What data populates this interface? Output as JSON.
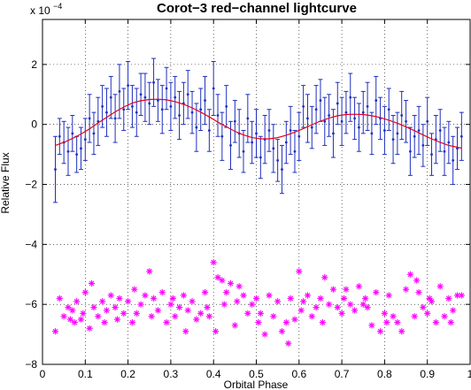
{
  "chart_data": {
    "type": "scatter",
    "title": "Corot−3  red−channel lightcurve",
    "xlabel": "Orbital Phase",
    "ylabel": "Relative Flux",
    "y_multiplier_label": "x 10",
    "y_multiplier_exponent": "−4",
    "xlim": [
      0,
      1
    ],
    "ylim": [
      -8,
      3.5
    ],
    "grid": true,
    "x_ticks": [
      0,
      0.1,
      0.2,
      0.3,
      0.4,
      0.5,
      0.6,
      0.7,
      0.8,
      0.9,
      1
    ],
    "x_tick_labels": [
      "0",
      "0.1",
      "0.2",
      "0.3",
      "0.4",
      "0.5",
      "0.6",
      "0.7",
      "0.8",
      "0.9",
      "1"
    ],
    "y_ticks": [
      -8,
      -6,
      -4,
      -2,
      0,
      2
    ],
    "y_tick_labels": [
      "−8",
      "−6",
      "−4",
      "−2",
      "0",
      "2"
    ],
    "colors": {
      "data": "#1f2fbf",
      "model": "#e8001c",
      "residuals": "#ff00ff"
    },
    "series": [
      {
        "kind": "errorbar",
        "x": [
          0.03,
          0.04,
          0.05,
          0.06,
          0.07,
          0.08,
          0.09,
          0.1,
          0.11,
          0.12,
          0.13,
          0.14,
          0.15,
          0.16,
          0.17,
          0.18,
          0.19,
          0.2,
          0.21,
          0.22,
          0.23,
          0.24,
          0.25,
          0.26,
          0.27,
          0.28,
          0.29,
          0.3,
          0.31,
          0.32,
          0.33,
          0.34,
          0.35,
          0.36,
          0.37,
          0.38,
          0.39,
          0.4,
          0.41,
          0.42,
          0.43,
          0.44,
          0.45,
          0.46,
          0.47,
          0.48,
          0.49,
          0.5,
          0.51,
          0.52,
          0.53,
          0.54,
          0.55,
          0.56,
          0.57,
          0.58,
          0.59,
          0.6,
          0.61,
          0.62,
          0.63,
          0.64,
          0.65,
          0.66,
          0.67,
          0.68,
          0.69,
          0.7,
          0.71,
          0.72,
          0.73,
          0.74,
          0.75,
          0.76,
          0.77,
          0.78,
          0.79,
          0.8,
          0.81,
          0.82,
          0.83,
          0.84,
          0.85,
          0.86,
          0.87,
          0.88,
          0.89,
          0.9,
          0.91,
          0.92,
          0.93,
          0.94,
          0.95,
          0.96,
          0.97,
          0.98
        ],
        "y": [
          -1.5,
          -0.4,
          -0.6,
          -0.9,
          -0.3,
          -1.0,
          -0.8,
          -0.5,
          0.2,
          -0.3,
          0.1,
          0.6,
          0.4,
          0.9,
          0.2,
          1.1,
          0.5,
          1.3,
          0.6,
          0.4,
          1.0,
          0.9,
          0.7,
          1.4,
          0.8,
          0.5,
          1.2,
          0.6,
          0.9,
          0.3,
          0.7,
          1.0,
          0.4,
          -0.1,
          0.5,
          0.8,
          -0.2,
          1.2,
          0.3,
          -0.4,
          0.6,
          -0.7,
          0.1,
          -0.3,
          -0.9,
          0.2,
          -0.6,
          -0.3,
          -1.1,
          -0.5,
          -0.2,
          -0.8,
          -1.2,
          -1.5,
          -0.6,
          -0.2,
          -0.9,
          -0.4,
          0.6,
          0.2,
          -0.1,
          0.5,
          0.8,
          0.1,
          0.3,
          -0.3,
          0.7,
          0.1,
          0.4,
          0.9,
          0.2,
          -0.1,
          0.4,
          0.6,
          -0.3,
          0.8,
          0.2,
          -0.2,
          0.5,
          -0.5,
          -0.3,
          0.3,
          0.1,
          -0.9,
          -0.4,
          -0.2,
          -0.7,
          0.1,
          -1.0,
          -0.5,
          -0.2,
          -0.9,
          -0.6,
          -1.2,
          -0.8,
          -0.4
        ],
        "err": [
          1.1,
          0.6,
          0.7,
          0.8,
          0.6,
          0.6,
          0.7,
          0.7,
          0.8,
          0.7,
          0.8,
          0.7,
          0.8,
          0.7,
          0.8,
          0.9,
          0.7,
          0.8,
          0.7,
          0.8,
          0.7,
          0.8,
          0.7,
          0.8,
          0.7,
          0.8,
          0.7,
          0.8,
          0.7,
          0.8,
          0.7,
          0.8,
          0.7,
          0.8,
          0.7,
          0.8,
          0.7,
          0.9,
          0.7,
          0.8,
          0.7,
          0.8,
          0.7,
          0.8,
          0.7,
          0.8,
          0.7,
          0.8,
          0.7,
          0.8,
          0.7,
          0.8,
          0.7,
          0.8,
          0.7,
          0.8,
          0.7,
          0.8,
          0.7,
          0.8,
          0.7,
          0.8,
          0.7,
          0.8,
          0.7,
          0.8,
          0.7,
          0.8,
          0.7,
          0.8,
          0.7,
          0.8,
          0.7,
          0.8,
          0.7,
          0.8,
          0.7,
          0.8,
          0.7,
          0.8,
          0.7,
          0.8,
          0.7,
          0.8,
          0.7,
          0.8,
          0.7,
          0.8,
          0.7,
          0.8,
          0.7,
          0.8,
          0.7,
          0.8,
          0.7,
          0.8
        ]
      },
      {
        "kind": "line",
        "x": [
          0.03,
          0.05,
          0.07,
          0.09,
          0.11,
          0.13,
          0.15,
          0.17,
          0.19,
          0.21,
          0.23,
          0.25,
          0.27,
          0.29,
          0.31,
          0.33,
          0.35,
          0.37,
          0.39,
          0.41,
          0.43,
          0.45,
          0.47,
          0.49,
          0.51,
          0.53,
          0.55,
          0.57,
          0.59,
          0.61,
          0.63,
          0.65,
          0.67,
          0.69,
          0.71,
          0.73,
          0.75,
          0.77,
          0.79,
          0.81,
          0.83,
          0.85,
          0.87,
          0.89,
          0.91,
          0.93,
          0.95,
          0.97,
          0.98
        ],
        "y": [
          -0.7,
          -0.6,
          -0.47,
          -0.32,
          -0.15,
          0.05,
          0.24,
          0.42,
          0.58,
          0.71,
          0.79,
          0.83,
          0.84,
          0.82,
          0.76,
          0.67,
          0.55,
          0.41,
          0.25,
          0.08,
          -0.08,
          -0.23,
          -0.35,
          -0.44,
          -0.48,
          -0.48,
          -0.44,
          -0.36,
          -0.26,
          -0.14,
          -0.01,
          0.11,
          0.21,
          0.29,
          0.33,
          0.34,
          0.33,
          0.29,
          0.23,
          0.14,
          0.04,
          -0.08,
          -0.21,
          -0.35,
          -0.48,
          -0.6,
          -0.7,
          -0.76,
          -0.79
        ]
      },
      {
        "kind": "scatter",
        "marker": "*",
        "x": [
          0.03,
          0.04,
          0.05,
          0.06,
          0.065,
          0.07,
          0.075,
          0.08,
          0.09,
          0.095,
          0.1,
          0.11,
          0.115,
          0.12,
          0.13,
          0.14,
          0.145,
          0.15,
          0.16,
          0.17,
          0.175,
          0.18,
          0.19,
          0.2,
          0.21,
          0.215,
          0.22,
          0.23,
          0.24,
          0.25,
          0.255,
          0.26,
          0.27,
          0.28,
          0.29,
          0.3,
          0.305,
          0.31,
          0.32,
          0.33,
          0.335,
          0.34,
          0.35,
          0.36,
          0.37,
          0.38,
          0.385,
          0.39,
          0.4,
          0.405,
          0.41,
          0.42,
          0.425,
          0.43,
          0.44,
          0.45,
          0.455,
          0.46,
          0.47,
          0.48,
          0.49,
          0.5,
          0.505,
          0.51,
          0.52,
          0.53,
          0.54,
          0.55,
          0.56,
          0.57,
          0.575,
          0.58,
          0.59,
          0.6,
          0.605,
          0.61,
          0.62,
          0.63,
          0.64,
          0.65,
          0.655,
          0.66,
          0.67,
          0.68,
          0.69,
          0.7,
          0.705,
          0.71,
          0.72,
          0.73,
          0.74,
          0.75,
          0.755,
          0.76,
          0.77,
          0.78,
          0.79,
          0.8,
          0.805,
          0.81,
          0.82,
          0.83,
          0.84,
          0.85,
          0.86,
          0.87,
          0.875,
          0.88,
          0.89,
          0.9,
          0.905,
          0.91,
          0.92,
          0.93,
          0.94,
          0.95,
          0.955,
          0.96,
          0.97,
          0.98
        ],
        "y": [
          -6.9,
          -5.8,
          -6.4,
          -6.1,
          -6.5,
          -6.2,
          -6.6,
          -5.9,
          -6.5,
          -6.3,
          -5.6,
          -6.8,
          -5.3,
          -6.1,
          -6.4,
          -5.9,
          -6.6,
          -6.2,
          -5.7,
          -6.1,
          -6.5,
          -5.8,
          -6.3,
          -5.9,
          -6.6,
          -5.5,
          -6.3,
          -6.0,
          -5.7,
          -4.9,
          -6.4,
          -5.8,
          -6.2,
          -5.6,
          -6.6,
          -6.0,
          -5.8,
          -6.4,
          -6.1,
          -5.7,
          -6.9,
          -6.2,
          -5.9,
          -6.5,
          -6.3,
          -5.6,
          -6.1,
          -6.4,
          -4.6,
          -6.9,
          -5.1,
          -5.2,
          -6.0,
          -5.6,
          -5.3,
          -6.7,
          -5.9,
          -5.4,
          -5.7,
          -6.3,
          -6.0,
          -5.8,
          -6.6,
          -6.3,
          -7.0,
          -5.7,
          -6.4,
          -5.9,
          -6.9,
          -6.6,
          -7.3,
          -5.8,
          -6.5,
          -4.9,
          -6.2,
          -5.9,
          -5.7,
          -6.4,
          -6.1,
          -5.8,
          -6.6,
          -5.1,
          -6.0,
          -5.5,
          -6.1,
          -6.3,
          -5.8,
          -5.5,
          -6.0,
          -6.2,
          -5.4,
          -6.0,
          -5.8,
          -6.1,
          -6.7,
          -5.6,
          -6.9,
          -6.3,
          -6.6,
          -5.7,
          -6.4,
          -6.6,
          -6.9,
          -5.5,
          -5.0,
          -6.4,
          -5.2,
          -5.6,
          -6.1,
          -6.3,
          -5.8,
          -5.9,
          -6.6,
          -5.4,
          -6.4,
          -5.8,
          -6.6,
          -6.2,
          -5.7,
          -5.7
        ]
      }
    ]
  }
}
